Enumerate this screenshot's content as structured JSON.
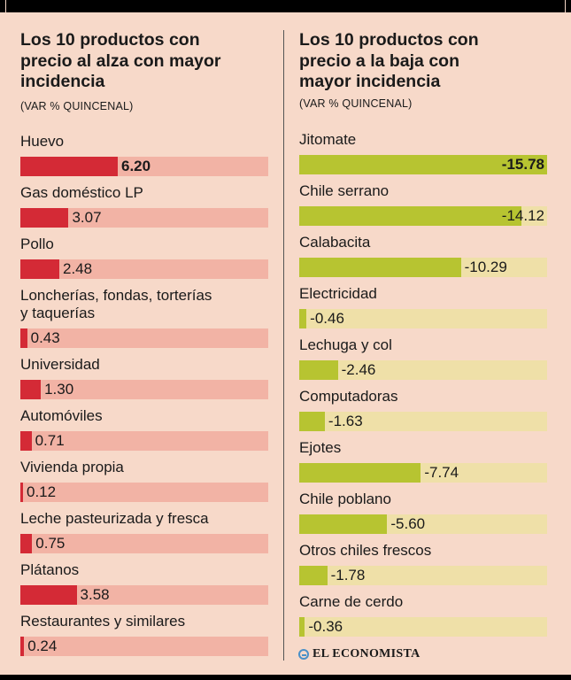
{
  "chart_data": [
    {
      "type": "bar",
      "orientation": "horizontal",
      "title": "Los 10 productos con precio al alza con mayor incidencia",
      "title_lines": [
        "Los 10 productos con",
        "precio al alza con mayor",
        "incidencia"
      ],
      "subtitle": "(VAR % QUINCENAL)",
      "categories": [
        "Huevo",
        "Gas doméstico LP",
        "Pollo",
        "Loncherías, fondas, torterías y taquerías",
        "Universidad",
        "Automóviles",
        "Vivienda propia",
        "Leche pasteurizada y fresca",
        "Plátanos",
        "Restaurantes y similares"
      ],
      "category_lines": [
        [
          "Huevo"
        ],
        [
          "Gas doméstico LP"
        ],
        [
          "Pollo"
        ],
        [
          "Loncherías, fondas, torterías",
          "y taquerías"
        ],
        [
          "Universidad"
        ],
        [
          "Automóviles"
        ],
        [
          "Vivienda propia"
        ],
        [
          "Leche pasteurizada y fresca"
        ],
        [
          "Plátanos"
        ],
        [
          "Restaurantes y similares"
        ]
      ],
      "values": [
        6.2,
        3.07,
        2.48,
        0.43,
        1.3,
        0.71,
        0.12,
        0.75,
        3.58,
        0.24
      ],
      "value_labels": [
        "6.20",
        "3.07",
        "2.48",
        "0.43",
        "1.30",
        "0.71",
        "0.12",
        "0.75",
        "3.58",
        "0.24"
      ],
      "xlim": [
        0,
        15.78
      ],
      "colors": {
        "bar": "#d42a36",
        "track": "#f2b3a5"
      }
    },
    {
      "type": "bar",
      "orientation": "horizontal",
      "title": "Los 10 productos con precio a la baja con mayor incidencia",
      "title_lines": [
        "Los 10 productos con",
        "precio a la baja con",
        "mayor incidencia"
      ],
      "subtitle": "(VAR % QUINCENAL)",
      "categories": [
        "Jitomate",
        "Chile serrano",
        "Calabacita",
        "Electricidad",
        "Lechuga y col",
        "Computadoras",
        "Ejotes",
        "Chile poblano",
        "Otros chiles frescos",
        "Carne de cerdo"
      ],
      "category_lines": [
        [
          "Jitomate"
        ],
        [
          "Chile serrano"
        ],
        [
          "Calabacita"
        ],
        [
          "Electricidad"
        ],
        [
          "Lechuga y col"
        ],
        [
          "Computadoras"
        ],
        [
          "Ejotes"
        ],
        [
          "Chile poblano"
        ],
        [
          "Otros chiles frescos"
        ],
        [
          "Carne de cerdo"
        ]
      ],
      "values": [
        -15.78,
        -14.12,
        -10.29,
        -0.46,
        -2.46,
        -1.63,
        -7.74,
        -5.6,
        -1.78,
        -0.36
      ],
      "value_labels": [
        "-15.78",
        "-14.12",
        "-10.29",
        "-0.46",
        "-2.46",
        "-1.63",
        "-7.74",
        "-5.60",
        "-1.78",
        "-0.36"
      ],
      "xlim": [
        0,
        15.78
      ],
      "colors": {
        "bar": "#b7c431",
        "track": "#efe0a8"
      }
    }
  ],
  "logo": {
    "text": "EL ECONOMISTA"
  }
}
